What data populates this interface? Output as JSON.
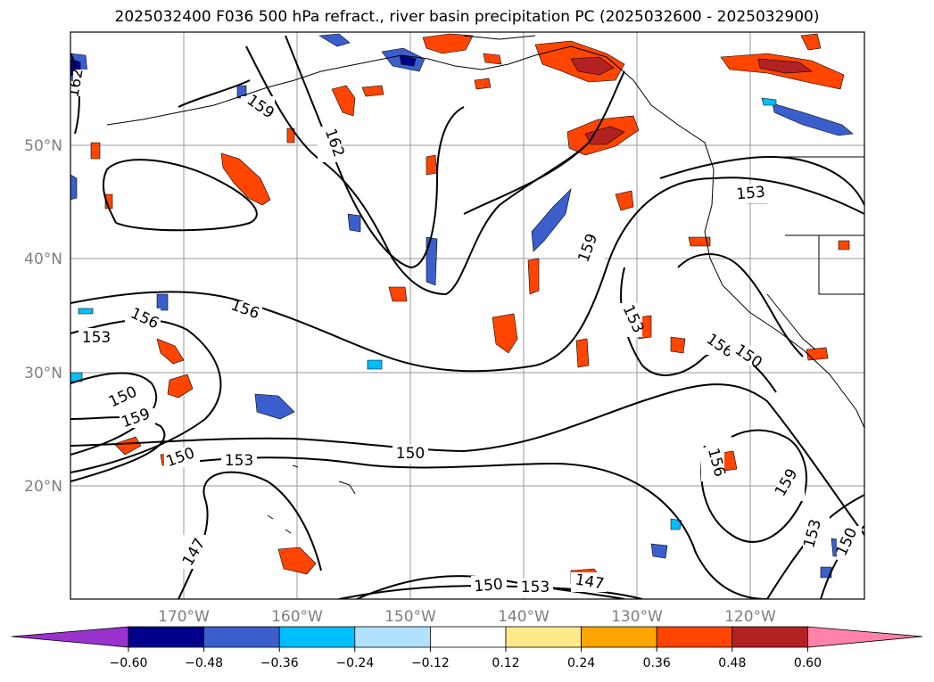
{
  "title": "2025032400 F036 500 hPa refract., river basin precipitation PC (2025032600 - 2025032900)",
  "lat_labels": [
    "50°N",
    "40°N",
    "30°N",
    "20°N"
  ],
  "lon_labels": [
    "170°W",
    "160°W",
    "150°W",
    "140°W",
    "130°W",
    "120°W"
  ],
  "contour_labels": [
    "162",
    "159",
    "162",
    "156",
    "153",
    "156",
    "150",
    "159",
    "150",
    "153",
    "150",
    "147",
    "150",
    "153",
    "147",
    "159",
    "153",
    "156",
    "150",
    "156",
    "159",
    "153",
    "150",
    "153"
  ],
  "colorbar": {
    "ticks": [
      "−0.60",
      "−0.48",
      "−0.36",
      "−0.24",
      "−0.12",
      "0.12",
      "0.24",
      "0.36",
      "0.48",
      "0.60"
    ],
    "colors": [
      "#9a32cd",
      "#00008b",
      "#3a5fcd",
      "#00bfff",
      "#b0e2ff",
      "#ffffff",
      "#ffe98a",
      "#ffa500",
      "#ff4500",
      "#b22222",
      "#ff82ab"
    ]
  },
  "colors": {
    "positive_strong": "#ff4500",
    "positive_mid": "#ffa500",
    "positive_weak": "#ffe98a",
    "dark_red": "#b22222",
    "pink": "#ff82ab",
    "negative_weak": "#b0e2ff",
    "negative_mid": "#00bfff",
    "negative_strong": "#3a5fcd",
    "navy": "#00008b",
    "purple": "#9a32cd"
  }
}
